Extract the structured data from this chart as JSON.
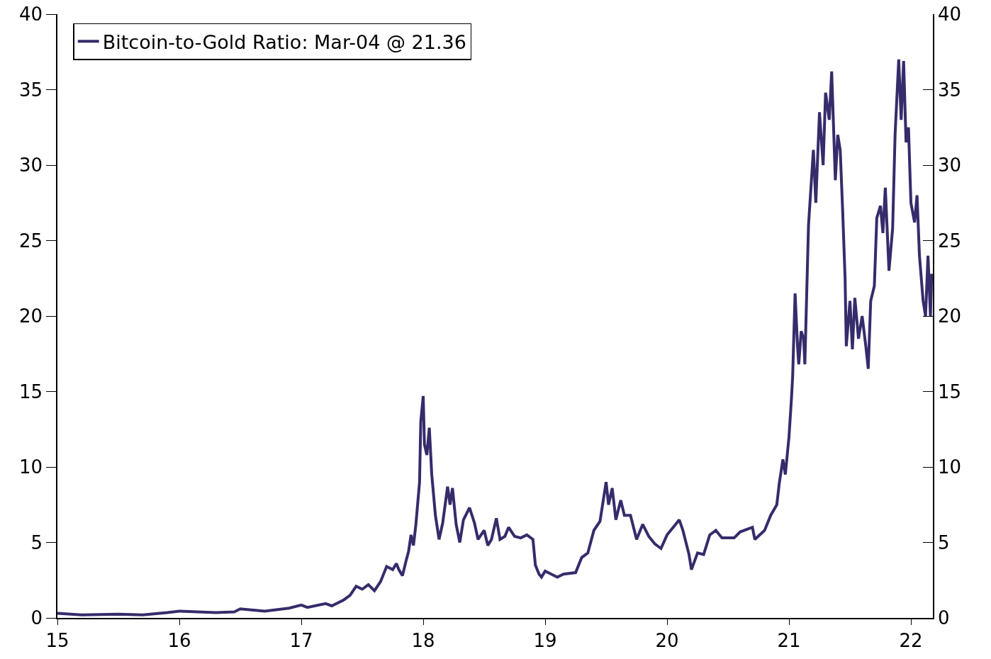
{
  "chart_data": {
    "type": "line",
    "legend": "top left",
    "grid": false,
    "line_style": "solid",
    "marker": "none",
    "xlim": [
      15,
      22.18
    ],
    "xticks": [
      15,
      16,
      17,
      18,
      19,
      20,
      21,
      22
    ],
    "ylim": [
      0,
      40
    ],
    "yticks": [
      0,
      5,
      10,
      15,
      20,
      25,
      30,
      35,
      40
    ],
    "y2lim": [
      0,
      40
    ],
    "y2ticks": [
      0,
      5,
      10,
      15,
      20,
      25,
      30,
      35,
      40
    ],
    "x": [
      15.0,
      15.2,
      15.5,
      15.7,
      15.9,
      16.0,
      16.3,
      16.45,
      16.5,
      16.7,
      16.9,
      17.0,
      17.05,
      17.2,
      17.25,
      17.35,
      17.4,
      17.45,
      17.5,
      17.55,
      17.6,
      17.65,
      17.7,
      17.75,
      17.78,
      17.8,
      17.83,
      17.86,
      17.88,
      17.9,
      17.92,
      17.94,
      17.97,
      17.98,
      18.0,
      18.01,
      18.03,
      18.05,
      18.07,
      18.1,
      18.13,
      18.16,
      18.2,
      18.22,
      18.24,
      18.27,
      18.3,
      18.33,
      18.38,
      18.42,
      18.45,
      18.5,
      18.53,
      18.56,
      18.6,
      18.63,
      18.67,
      18.7,
      18.75,
      18.8,
      18.85,
      18.9,
      18.92,
      18.95,
      18.97,
      19.0,
      19.05,
      19.1,
      19.15,
      19.25,
      19.3,
      19.35,
      19.4,
      19.45,
      19.5,
      19.52,
      19.55,
      19.58,
      19.62,
      19.65,
      19.7,
      19.75,
      19.8,
      19.85,
      19.9,
      19.95,
      20.0,
      20.05,
      20.1,
      20.13,
      20.18,
      20.2,
      20.25,
      20.3,
      20.35,
      20.4,
      20.45,
      20.55,
      20.6,
      20.7,
      20.72,
      20.8,
      20.85,
      20.9,
      20.92,
      20.95,
      20.97,
      21.0,
      21.02,
      21.03,
      21.05,
      21.07,
      21.08,
      21.1,
      21.12,
      21.13,
      21.16,
      21.18,
      21.2,
      21.22,
      21.25,
      21.28,
      21.3,
      21.33,
      21.35,
      21.38,
      21.4,
      21.42,
      21.44,
      21.46,
      21.47,
      21.5,
      21.52,
      21.54,
      21.57,
      21.6,
      21.63,
      21.65,
      21.67,
      21.7,
      21.72,
      21.75,
      21.77,
      21.79,
      21.82,
      21.85,
      21.87,
      21.9,
      21.92,
      21.94,
      21.96,
      21.98,
      22.0,
      22.03,
      22.05,
      22.07,
      22.1,
      22.12,
      22.14,
      22.16,
      22.17
    ],
    "series": [
      {
        "name": "Bitcoin-to-Gold Ratio: Mar-04 @ 21.36",
        "color": "#352c6b",
        "values": [
          0.3,
          0.2,
          0.25,
          0.2,
          0.35,
          0.45,
          0.35,
          0.4,
          0.6,
          0.45,
          0.65,
          0.85,
          0.7,
          0.95,
          0.8,
          1.2,
          1.5,
          2.1,
          1.9,
          2.2,
          1.8,
          2.4,
          3.4,
          3.2,
          3.6,
          3.2,
          2.8,
          3.8,
          4.4,
          5.5,
          4.8,
          6.2,
          9,
          13,
          14.7,
          11.5,
          10.8,
          12.6,
          9.5,
          6.8,
          5.2,
          6.3,
          8.7,
          7.5,
          8.6,
          6.2,
          5.0,
          6.5,
          7.3,
          6.3,
          5.2,
          5.8,
          4.8,
          5.2,
          6.6,
          5.2,
          5.4,
          6.0,
          5.4,
          5.3,
          5.5,
          5.2,
          3.5,
          2.9,
          2.7,
          3.1,
          2.9,
          2.7,
          2.9,
          3.0,
          4.0,
          4.3,
          5.8,
          6.4,
          9.0,
          7.5,
          8.6,
          6.5,
          7.8,
          6.8,
          6.8,
          5.2,
          6.2,
          5.4,
          4.9,
          4.6,
          5.5,
          6.0,
          6.5,
          5.8,
          4.2,
          3.2,
          4.3,
          4.2,
          5.5,
          5.8,
          5.3,
          5.3,
          5.7,
          6.0,
          5.2,
          5.8,
          6.8,
          7.5,
          8.9,
          10.5,
          9.5,
          12.0,
          14.5,
          16.0,
          21.5,
          18.0,
          16.8,
          19.0,
          18.5,
          16.8,
          26.0,
          28.5,
          31.0,
          27.5,
          33.5,
          30.0,
          34.8,
          33.0,
          36.2,
          29.0,
          32.0,
          31.0,
          27.0,
          22.5,
          18.0,
          21.0,
          17.8,
          21.2,
          18.5,
          20.0,
          18.0,
          16.5,
          21.0,
          22.0,
          26.5,
          27.3,
          25.5,
          28.5,
          23.0,
          25.8,
          32.0,
          37.0,
          33.0,
          36.9,
          31.5,
          32.5,
          27.5,
          26.2,
          28.0,
          24.0,
          21.0,
          20.0,
          24.0,
          20.0,
          22.8
        ]
      }
    ]
  }
}
